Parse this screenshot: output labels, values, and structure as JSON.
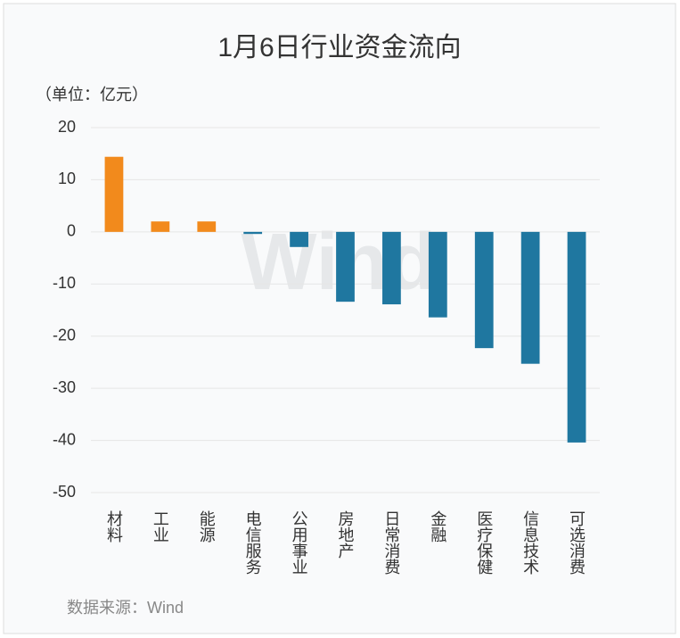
{
  "chart_data": {
    "type": "bar",
    "title": "1月6日行业资金流向",
    "unit_label": "（单位：亿元）",
    "source": "数据来源：Wind",
    "watermark": "Wind",
    "categories": [
      "材料",
      "工业",
      "能源",
      "电信服务",
      "公用事业",
      "房地产",
      "日常消费",
      "金融",
      "医疗保健",
      "信息技术",
      "可选消费"
    ],
    "values": [
      14.4,
      2.0,
      2.0,
      -0.4,
      -2.9,
      -13.4,
      -13.9,
      -16.4,
      -22.3,
      -25.3,
      -40.4
    ],
    "colors": [
      "#f28a1c",
      "#f28a1c",
      "#f28a1c",
      "#1f77a0",
      "#1f77a0",
      "#1f77a0",
      "#1f77a0",
      "#1f77a0",
      "#1f77a0",
      "#1f77a0",
      "#1f77a0"
    ],
    "ylim": [
      -50,
      20
    ],
    "yticks": [
      20,
      10,
      0,
      -10,
      -20,
      -30,
      -40,
      -50
    ],
    "grid": true
  }
}
